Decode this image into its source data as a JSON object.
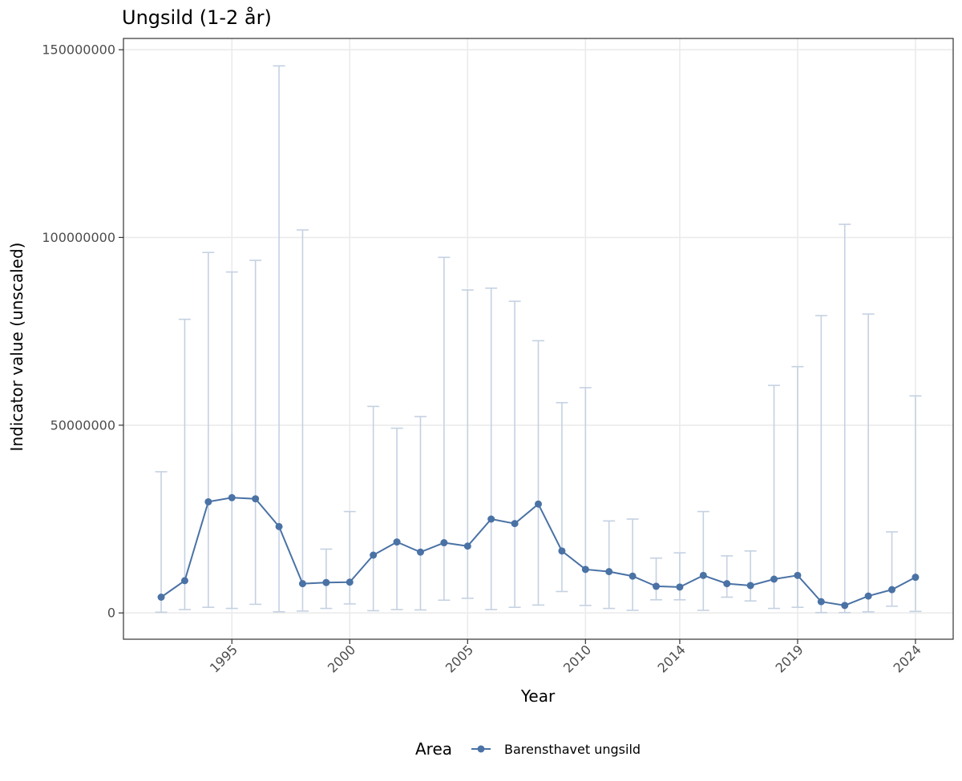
{
  "chart_data": {
    "type": "line",
    "title": "Ungsild (1-2 år)",
    "xlabel": "Year",
    "ylabel": "Indicator value (unscaled)",
    "x_ticks": [
      1995,
      2000,
      2005,
      2010,
      2014,
      2019,
      2024
    ],
    "y_ticks": [
      0,
      50000000,
      100000000,
      150000000
    ],
    "ylim": [
      -7000000,
      153000000
    ],
    "grid": true,
    "legend": {
      "title": "Area",
      "position": "bottom"
    },
    "series": [
      {
        "name": "Barensthavet ungsild",
        "color": "#4a72a5",
        "errorbar_color": "#c5d1e2",
        "points": [
          {
            "x": 1992,
            "y": 4200000,
            "lo": 200000,
            "hi": 37600000
          },
          {
            "x": 1993,
            "y": 8600000,
            "lo": 900000,
            "hi": 78200000
          },
          {
            "x": 1994,
            "y": 29600000,
            "lo": 1500000,
            "hi": 96000000
          },
          {
            "x": 1995,
            "y": 30700000,
            "lo": 1200000,
            "hi": 90800000
          },
          {
            "x": 1996,
            "y": 30400000,
            "lo": 2300000,
            "hi": 93900000
          },
          {
            "x": 1997,
            "y": 23000000,
            "lo": 300000,
            "hi": 145700000
          },
          {
            "x": 1998,
            "y": 7800000,
            "lo": 500000,
            "hi": 102000000
          },
          {
            "x": 1999,
            "y": 8100000,
            "lo": 1200000,
            "hi": 17000000
          },
          {
            "x": 2000,
            "y": 8200000,
            "lo": 2400000,
            "hi": 27000000
          },
          {
            "x": 2001,
            "y": 15400000,
            "lo": 600000,
            "hi": 55000000
          },
          {
            "x": 2002,
            "y": 18900000,
            "lo": 900000,
            "hi": 49200000
          },
          {
            "x": 2003,
            "y": 16200000,
            "lo": 800000,
            "hi": 52300000
          },
          {
            "x": 2004,
            "y": 18700000,
            "lo": 3400000,
            "hi": 94700000
          },
          {
            "x": 2005,
            "y": 17800000,
            "lo": 3900000,
            "hi": 86000000
          },
          {
            "x": 2006,
            "y": 25000000,
            "lo": 900000,
            "hi": 86500000
          },
          {
            "x": 2007,
            "y": 23800000,
            "lo": 1500000,
            "hi": 83000000
          },
          {
            "x": 2008,
            "y": 29000000,
            "lo": 2100000,
            "hi": 72500000
          },
          {
            "x": 2009,
            "y": 16500000,
            "lo": 5700000,
            "hi": 56000000
          },
          {
            "x": 2010,
            "y": 11600000,
            "lo": 2000000,
            "hi": 60000000
          },
          {
            "x": 2011,
            "y": 11000000,
            "lo": 1200000,
            "hi": 24500000
          },
          {
            "x": 2012,
            "y": 9800000,
            "lo": 700000,
            "hi": 25000000
          },
          {
            "x": 2013,
            "y": 7100000,
            "lo": 3500000,
            "hi": 14600000
          },
          {
            "x": 2014,
            "y": 6900000,
            "lo": 3500000,
            "hi": 16000000
          },
          {
            "x": 2015,
            "y": 10000000,
            "lo": 700000,
            "hi": 27000000
          },
          {
            "x": 2016,
            "y": 7800000,
            "lo": 4200000,
            "hi": 15200000
          },
          {
            "x": 2017,
            "y": 7300000,
            "lo": 3200000,
            "hi": 16500000
          },
          {
            "x": 2018,
            "y": 9000000,
            "lo": 1200000,
            "hi": 60600000
          },
          {
            "x": 2019,
            "y": 10000000,
            "lo": 1500000,
            "hi": 65600000
          },
          {
            "x": 2020,
            "y": 3000000,
            "lo": 100000,
            "hi": 79200000
          },
          {
            "x": 2021,
            "y": 2000000,
            "lo": 100000,
            "hi": 103500000
          },
          {
            "x": 2022,
            "y": 4500000,
            "lo": 300000,
            "hi": 79600000
          },
          {
            "x": 2023,
            "y": 6200000,
            "lo": 1800000,
            "hi": 21600000
          },
          {
            "x": 2024,
            "y": 9500000,
            "lo": 400000,
            "hi": 57800000
          }
        ]
      }
    ]
  }
}
